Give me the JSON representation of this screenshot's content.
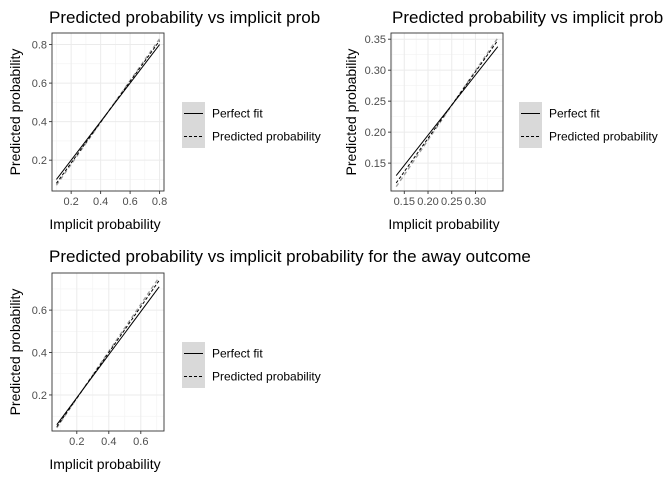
{
  "chart_data": [
    {
      "type": "line",
      "title": "Predicted probability vs implicit prob",
      "xlabel": "Implicit probability",
      "ylabel": "Predicted probability",
      "xlim": [
        0.07,
        0.83
      ],
      "ylim": [
        0.04,
        0.86
      ],
      "xticks": [
        0.2,
        0.4,
        0.6,
        0.8
      ],
      "xtick_labels": [
        "0.2",
        "0.4",
        "0.6",
        "0.8"
      ],
      "yticks": [
        0.2,
        0.4,
        0.6,
        0.8
      ],
      "ytick_labels": [
        "0.2",
        "0.4",
        "0.6",
        "0.8"
      ],
      "grid": true,
      "legend_position": "right",
      "series": [
        {
          "name": "Perfect fit",
          "style": "solid",
          "color": "#000000",
          "x": [
            0.1,
            0.8
          ],
          "y": [
            0.1,
            0.8
          ]
        },
        {
          "name": "Predicted probability",
          "style": "dashed",
          "color": "#000000",
          "x": [
            0.1,
            0.8
          ],
          "y": [
            0.08,
            0.82
          ]
        },
        {
          "name": "",
          "style": "dashed",
          "color": "#a0a0a0",
          "x": [
            0.1,
            0.8
          ],
          "y": [
            0.07,
            0.83
          ]
        }
      ]
    },
    {
      "type": "line",
      "title": "Predicted probability vs implicit prob",
      "xlabel": "Implicit probability",
      "ylabel": "Predicted probability",
      "xlim": [
        0.122,
        0.358
      ],
      "ylim": [
        0.105,
        0.36
      ],
      "xticks": [
        0.15,
        0.2,
        0.25,
        0.3
      ],
      "xtick_labels": [
        "0.15",
        "0.20",
        "0.25",
        "0.30"
      ],
      "yticks": [
        0.15,
        0.2,
        0.25,
        0.3,
        0.35
      ],
      "ytick_labels": [
        "0.15",
        "0.20",
        "0.25",
        "0.30",
        "0.35"
      ],
      "grid": true,
      "legend_position": "right",
      "series": [
        {
          "name": "Perfect fit",
          "style": "solid",
          "color": "#000000",
          "x": [
            0.133,
            0.347
          ],
          "y": [
            0.13,
            0.338
          ]
        },
        {
          "name": "Predicted probability",
          "style": "dashed",
          "color": "#000000",
          "x": [
            0.133,
            0.347
          ],
          "y": [
            0.118,
            0.348
          ]
        },
        {
          "name": "",
          "style": "dashed",
          "color": "#a0a0a0",
          "x": [
            0.133,
            0.347
          ],
          "y": [
            0.112,
            0.352
          ]
        }
      ]
    },
    {
      "type": "line",
      "title": "Predicted probability vs implicit probability for the away outcome",
      "xlabel": "Implicit probability",
      "ylabel": "Predicted probability",
      "xlim": [
        0.045,
        0.745
      ],
      "ylim": [
        0.03,
        0.775
      ],
      "xticks": [
        0.2,
        0.4,
        0.6
      ],
      "xtick_labels": [
        "0.2",
        "0.4",
        "0.6"
      ],
      "yticks": [
        0.2,
        0.4,
        0.6
      ],
      "ytick_labels": [
        "0.2",
        "0.4",
        "0.6"
      ],
      "grid": true,
      "legend_position": "right",
      "series": [
        {
          "name": "Perfect fit",
          "style": "solid",
          "color": "#000000",
          "x": [
            0.075,
            0.715
          ],
          "y": [
            0.06,
            0.71
          ]
        },
        {
          "name": "Predicted probability",
          "style": "dashed",
          "color": "#000000",
          "x": [
            0.075,
            0.715
          ],
          "y": [
            0.05,
            0.74
          ]
        },
        {
          "name": "",
          "style": "dashed",
          "color": "#a0a0a0",
          "x": [
            0.075,
            0.715
          ],
          "y": [
            0.045,
            0.755
          ]
        }
      ]
    }
  ],
  "legend": {
    "items": [
      {
        "label": "Perfect fit",
        "style": "solid"
      },
      {
        "label": "Predicted probability",
        "style": "dashed"
      }
    ],
    "key_background": "#d9d9d9"
  }
}
